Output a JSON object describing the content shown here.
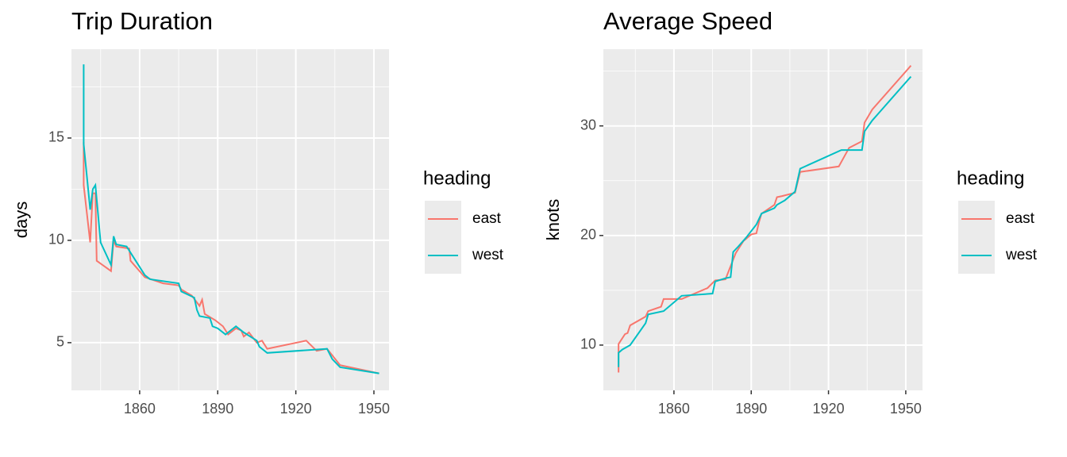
{
  "chart_data": [
    {
      "type": "line",
      "title": "Trip Duration",
      "y_label": "days",
      "legend_title": "heading",
      "xlim": [
        1833.8,
        1955.8
      ],
      "xticks": [
        1860,
        1890,
        1920,
        1950
      ],
      "ylim": [
        2.67,
        19.34
      ],
      "yticks": [
        5,
        10,
        15
      ],
      "grid": true,
      "series": [
        {
          "name": "east",
          "color": "#f8766d",
          "x": [
            1838.5,
            1838.5,
            1841,
            1842,
            1843,
            1843.5,
            1849,
            1850,
            1851,
            1856,
            1856.5,
            1862,
            1869,
            1875,
            1876,
            1880,
            1883,
            1884,
            1885,
            1889,
            1892,
            1894,
            1897,
            1899,
            1900,
            1902,
            1905,
            1907,
            1909,
            1924,
            1928,
            1932,
            1937,
            1952
          ],
          "values": [
            14.8,
            12.7,
            9.9,
            12.3,
            12.3,
            9.0,
            8.5,
            10.0,
            9.7,
            9.6,
            9.0,
            8.2,
            7.9,
            7.8,
            7.6,
            7.3,
            6.8,
            7.1,
            6.4,
            6.1,
            5.8,
            5.4,
            5.7,
            5.6,
            5.3,
            5.5,
            5.0,
            5.1,
            4.7,
            5.1,
            4.6,
            4.7,
            3.9,
            3.5
          ]
        },
        {
          "name": "west",
          "color": "#00bfc4",
          "x": [
            1838.5,
            1838.5,
            1841,
            1842,
            1843,
            1845,
            1849,
            1850,
            1851,
            1855,
            1862,
            1864,
            1875,
            1876,
            1881,
            1882,
            1883,
            1887,
            1888,
            1890,
            1893,
            1897,
            1900,
            1905,
            1906,
            1909,
            1932,
            1934,
            1937,
            1952
          ],
          "values": [
            18.6,
            14.7,
            11.5,
            12.5,
            12.7,
            9.9,
            8.8,
            10.2,
            9.8,
            9.7,
            8.3,
            8.1,
            7.9,
            7.5,
            7.2,
            6.6,
            6.3,
            6.2,
            5.8,
            5.7,
            5.4,
            5.8,
            5.5,
            5.1,
            4.8,
            4.5,
            4.7,
            4.2,
            3.8,
            3.5
          ]
        }
      ]
    },
    {
      "type": "line",
      "title": "Average Speed",
      "y_label": "knots",
      "legend_title": "heading",
      "xlim": [
        1832.6,
        1956.5
      ],
      "xticks": [
        1860,
        1890,
        1920,
        1950
      ],
      "ylim": [
        5.87,
        37.0
      ],
      "yticks": [
        10,
        20,
        30
      ],
      "grid": true,
      "series": [
        {
          "name": "east",
          "color": "#f8766d",
          "x": [
            1838.5,
            1838.5,
            1841,
            1842,
            1843,
            1849,
            1850,
            1855,
            1856,
            1863,
            1873,
            1876,
            1880,
            1882,
            1884,
            1887,
            1890,
            1892,
            1893,
            1894,
            1899,
            1900,
            1902,
            1907,
            1909,
            1924,
            1928,
            1933,
            1934,
            1937,
            1952
          ],
          "values": [
            7.5,
            10.1,
            11.0,
            11.1,
            11.8,
            12.6,
            13.1,
            13.5,
            14.2,
            14.2,
            15.2,
            15.9,
            16.0,
            17.2,
            18.4,
            19.5,
            20.1,
            20.2,
            21.2,
            22.0,
            22.8,
            23.5,
            23.6,
            23.9,
            25.8,
            26.3,
            28.0,
            28.6,
            30.3,
            31.5,
            35.5
          ]
        },
        {
          "name": "west",
          "color": "#00bfc4",
          "x": [
            1838.5,
            1838.5,
            1840,
            1843,
            1849,
            1850,
            1856,
            1863,
            1875,
            1876,
            1880,
            1882,
            1883,
            1885,
            1888,
            1892,
            1894,
            1899,
            1900,
            1903,
            1907,
            1909,
            1925,
            1933,
            1934,
            1937,
            1940,
            1952
          ],
          "values": [
            8.0,
            9.3,
            9.6,
            10.0,
            12.0,
            12.8,
            13.1,
            14.5,
            14.7,
            15.8,
            16.1,
            16.2,
            18.5,
            19.0,
            19.8,
            21.0,
            22.0,
            22.5,
            22.8,
            23.2,
            24.0,
            26.1,
            27.8,
            27.8,
            29.5,
            30.5,
            31.3,
            34.5
          ]
        }
      ]
    }
  ]
}
